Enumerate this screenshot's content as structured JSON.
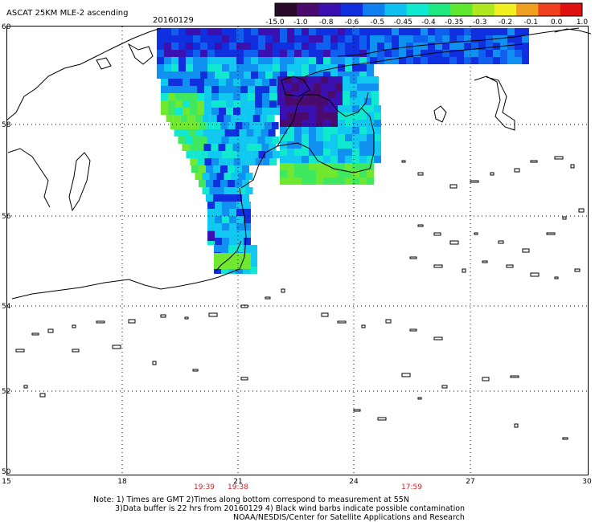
{
  "header": {
    "title": "ASCAT 25KM MLE-2 ascending",
    "date": "20160129"
  },
  "colorbar": {
    "labels": [
      "-15.0",
      "-1.0",
      "-0.8",
      "-0.6",
      "-0.5",
      "-0.45",
      "-0.4",
      "-0.35",
      "-0.3",
      "-0.2",
      "-0.1",
      "0.0",
      "1.0"
    ],
    "colors": [
      "#2a0a2a",
      "#4b0a6e",
      "#3a10b0",
      "#1030e0",
      "#1080f0",
      "#10c0f0",
      "#10e8d0",
      "#20e880",
      "#60e830",
      "#b0e820",
      "#f0f020",
      "#f0a020",
      "#f04020",
      "#e01010"
    ]
  },
  "axes": {
    "lat_labels": [
      "60",
      "58",
      "56",
      "54",
      "52",
      "50"
    ],
    "lon_labels": [
      "15",
      "18",
      "21",
      "24",
      "27",
      "30"
    ]
  },
  "times": [
    "19:39",
    "19:38",
    "17:59"
  ],
  "notes": {
    "line1": "Note: 1) Times are GMT 2)Times along bottom correspond to measurement at 55N",
    "line2": "3)Data buffer is 22 hrs from 20160129 4) Black wind barbs indicate possible contamination",
    "line3": "NOAA/NESDIS/Center for Satellite Applications and Research"
  }
}
